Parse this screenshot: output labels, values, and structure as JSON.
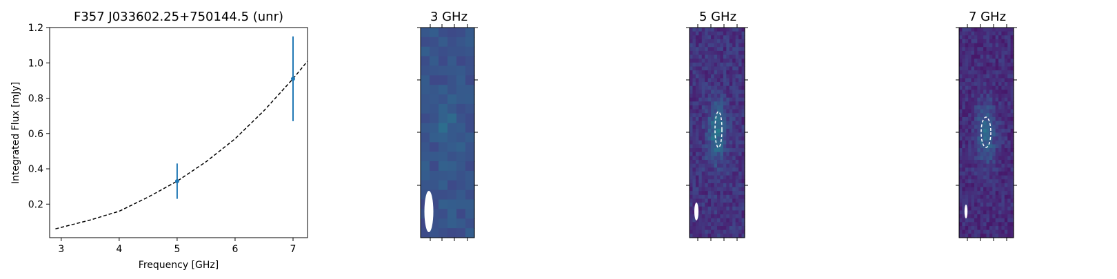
{
  "chart_data": [
    {
      "type": "scatter",
      "title": "F357 J033602.25+750144.5 (unr)",
      "xlabel": "Frequency [GHz]",
      "ylabel": "Integrated Flux [mJy]",
      "xlim": [
        2.8,
        7.25
      ],
      "ylim": [
        0.01,
        1.2
      ],
      "xticks": [
        3,
        4,
        5,
        6,
        7
      ],
      "yticks": [
        0.2,
        0.4,
        0.6,
        0.8,
        1.0,
        1.2
      ],
      "ytick_labels": [
        "0.2",
        "0.4",
        "0.6",
        "0.8",
        "1.0",
        "1.2"
      ],
      "series": [
        {
          "kind": "errorbar",
          "color": "#1f77b4",
          "points": [
            {
              "x": 5,
              "y": 0.33,
              "yerr_low": 0.1,
              "yerr_high": 0.1
            },
            {
              "x": 7,
              "y": 0.91,
              "yerr_low": 0.24,
              "yerr_high": 0.24
            }
          ]
        },
        {
          "kind": "fit",
          "style": "dashed",
          "color": "#000000",
          "x": [
            2.9,
            3.5,
            4.0,
            4.5,
            5.0,
            5.5,
            6.0,
            6.5,
            7.0,
            7.25
          ],
          "y": [
            0.06,
            0.11,
            0.16,
            0.24,
            0.33,
            0.44,
            0.57,
            0.73,
            0.91,
            1.01
          ]
        }
      ],
      "grid": false
    },
    {
      "type": "heatmap",
      "title": "3 GHz",
      "colormap": "viridis",
      "beam": true
    },
    {
      "type": "heatmap",
      "title": "5 GHz",
      "colormap": "viridis",
      "beam": true,
      "source_contour": true
    },
    {
      "type": "heatmap",
      "title": "7 GHz",
      "colormap": "viridis",
      "beam": true,
      "source_contour": true
    }
  ]
}
